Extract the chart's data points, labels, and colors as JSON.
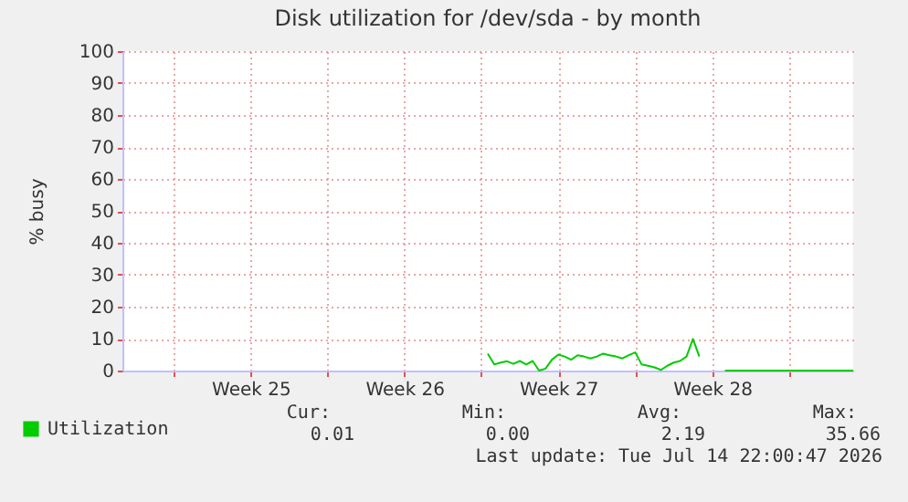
{
  "chart_data": {
    "type": "line",
    "title": "Disk utilization for /dev/sda - by month",
    "ylabel": "% busy",
    "categories": [
      null,
      null,
      null,
      null,
      null,
      null,
      null,
      null,
      null,
      null,
      null,
      null,
      null,
      null,
      null,
      null,
      null,
      null,
      null,
      null,
      "Week 25",
      null,
      null,
      null,
      null,
      null,
      null,
      null,
      null,
      null,
      null,
      null,
      null,
      null,
      null,
      null,
      null,
      null,
      null,
      null,
      null,
      null,
      null,
      null,
      "Week 26",
      null,
      null,
      null,
      null,
      null,
      null,
      null,
      null,
      null,
      null,
      null,
      null,
      null,
      null,
      null,
      null,
      null,
      null,
      null,
      null,
      null,
      null,
      null,
      "Week 27",
      null,
      null,
      null,
      null,
      null,
      null,
      null,
      null,
      null,
      null,
      null,
      null,
      null,
      null,
      null,
      null,
      null,
      null,
      null,
      null,
      null,
      null,
      null,
      "Week 28",
      null,
      null,
      null,
      null,
      null,
      null,
      null,
      null,
      null,
      null,
      null,
      null,
      null,
      null,
      null,
      null,
      null,
      null,
      null,
      null,
      null,
      null
    ],
    "series": [
      {
        "name": "Utilization",
        "color": "#00cc00",
        "values": [
          null,
          null,
          null,
          null,
          null,
          null,
          null,
          null,
          null,
          null,
          null,
          null,
          null,
          null,
          null,
          null,
          null,
          null,
          null,
          null,
          null,
          null,
          null,
          null,
          null,
          null,
          null,
          null,
          null,
          null,
          null,
          null,
          null,
          null,
          null,
          null,
          null,
          null,
          null,
          null,
          null,
          null,
          null,
          null,
          null,
          null,
          null,
          null,
          null,
          null,
          null,
          null,
          null,
          null,
          null,
          null,
          null,
          5.3,
          1.9,
          2.5,
          2.9,
          2.1,
          3,
          1.9,
          3,
          0,
          0.6,
          3.4,
          5,
          4.4,
          3.4,
          4.8,
          4.4,
          3.8,
          4.4,
          5.3,
          4.8,
          4.4,
          3.8,
          4.8,
          5.7,
          1.9,
          1.5,
          1,
          0.2,
          1.5,
          2.5,
          3,
          4.4,
          9.9,
          4.4,
          null,
          null,
          null,
          0,
          0,
          0,
          0,
          0,
          0,
          0,
          0,
          0,
          0,
          0,
          0,
          0,
          0,
          0,
          0,
          0,
          0,
          0,
          0,
          0
        ]
      }
    ],
    "ylim": [
      0,
      100
    ],
    "yticks": [
      0,
      10,
      20,
      30,
      40,
      50,
      60,
      70,
      80,
      90,
      100
    ],
    "grid": true,
    "legend": "bottom left",
    "marker": "none",
    "line_style": "solid",
    "annotations": [
      "Cur:",
      "0.01",
      "Min:",
      "0.00",
      "Avg:",
      "2.19",
      "Max:",
      "35.66",
      "Last update: Tue Jul 14 22:00:47 2026"
    ]
  }
}
